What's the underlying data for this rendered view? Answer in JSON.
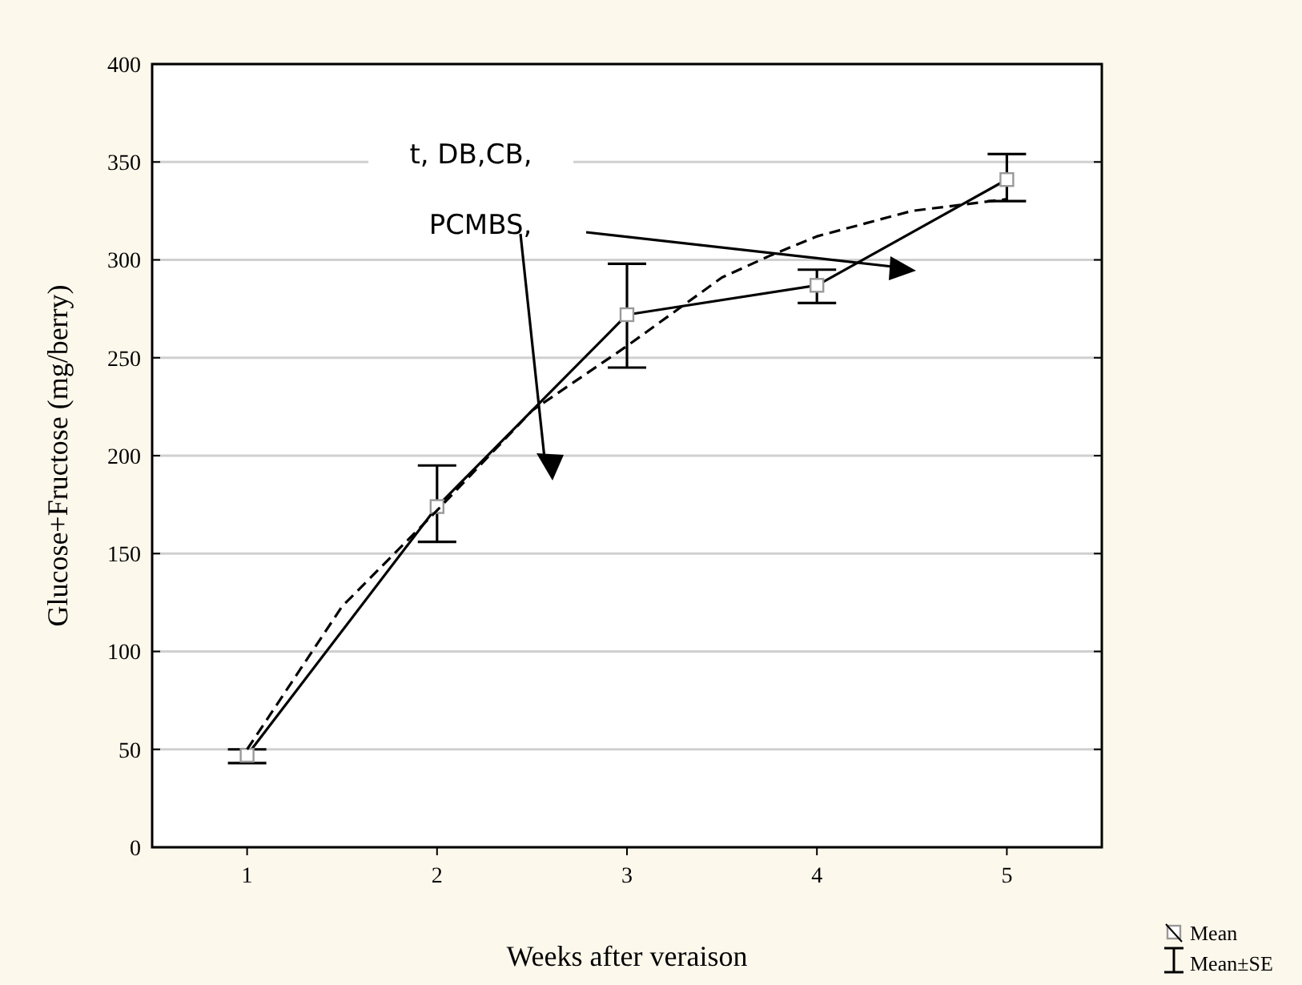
{
  "chart_data": {
    "type": "line",
    "xlabel": "Weeks after veraison",
    "ylabel": "Glucose+Fructose (mg/berry)",
    "xlim": [
      0.5,
      5.5
    ],
    "xticks": [
      1,
      2,
      3,
      4,
      5
    ],
    "ylim": [
      0,
      400
    ],
    "yticks": [
      0,
      50,
      100,
      150,
      200,
      250,
      300,
      350,
      400
    ],
    "grid": "y",
    "legend": "bottom right",
    "series": [
      {
        "name": "Mean",
        "color": "#000000",
        "x": [
          1,
          2,
          3,
          4,
          5
        ],
        "values": [
          47,
          174,
          272,
          287,
          341
        ],
        "errors": [
          [
            43,
            50
          ],
          [
            156,
            195
          ],
          [
            245,
            298
          ],
          [
            278,
            295
          ],
          [
            330,
            354
          ]
        ],
        "marker": "square",
        "line_style": "solid"
      },
      {
        "type": "line",
        "color": "#000000",
        "x": [
          1,
          1.5,
          2,
          2.5,
          3,
          3.5,
          3.75,
          4,
          4.5,
          5
        ],
        "values": [
          50,
          123,
          172,
          223,
          256,
          291,
          302,
          312,
          325,
          331
        ],
        "marker": "none",
        "line_style": "dashed"
      }
    ],
    "annotations": [
      "t, DB,CB,",
      "PCMBS,",
      "Mean±SE"
    ]
  }
}
